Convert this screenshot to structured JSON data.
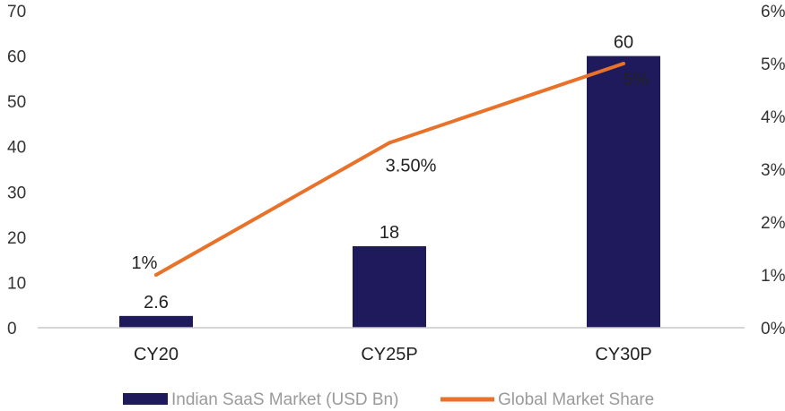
{
  "chart_data": {
    "type": "bar",
    "categories": [
      "CY20",
      "CY25P",
      "CY30P"
    ],
    "series": [
      {
        "name": "Indian SaaS Market (USD Bn)",
        "type": "bar",
        "axis": "left",
        "values": [
          2.6,
          18,
          60
        ],
        "labels": [
          "2.6",
          "18",
          "60"
        ],
        "color": "#1f1a5c"
      },
      {
        "name": "Global Market Share",
        "type": "line",
        "axis": "right",
        "values": [
          1,
          3.5,
          5
        ],
        "labels": [
          "1%",
          "3.50%",
          "5%"
        ],
        "color": "#e8722a"
      }
    ],
    "y_left": {
      "min": 0,
      "max": 70,
      "step": 10,
      "ticks": [
        "0",
        "10",
        "20",
        "30",
        "40",
        "50",
        "60",
        "70"
      ]
    },
    "y_right": {
      "min": 0,
      "max": 6,
      "step": 1,
      "ticks": [
        "0%",
        "1%",
        "2%",
        "3%",
        "4%",
        "5%",
        "6%"
      ]
    },
    "grid": false,
    "legend_position": "bottom"
  }
}
